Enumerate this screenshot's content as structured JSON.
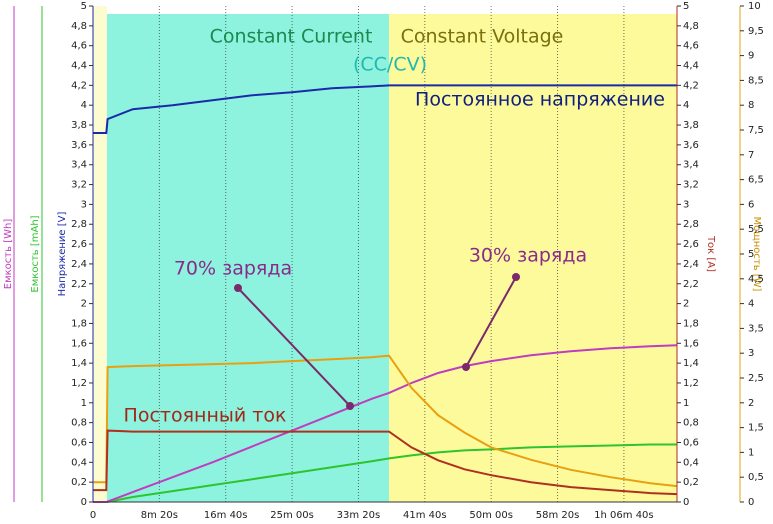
{
  "chart_data": {
    "type": "line",
    "ylabel": "Напряжение [V]",
    "y2label": "Ток [A]",
    "y3label": "Мощность [W]",
    "extra_axis_labels": [
      {
        "text": "Емкость [Wh]",
        "color": "#c03cc0"
      },
      {
        "text": "Емкость [mAh]",
        "color": "#2ec42e"
      }
    ],
    "x": [
      0,
      100,
      110,
      300,
      600,
      900,
      1200,
      1500,
      1800,
      2100,
      2230,
      2400,
      2600,
      2800,
      3000,
      3300,
      3600,
      3900,
      4200,
      4400
    ],
    "xlim": [
      0,
      4400
    ],
    "xticks": [
      0,
      {
        "value": 500,
        "label": "8m 20s"
      },
      {
        "value": 1000,
        "label": "16m 40s"
      },
      {
        "value": 1500,
        "label": "25m 00s"
      },
      {
        "value": 2000,
        "label": "33m 20s"
      },
      {
        "value": 2500,
        "label": "41m 40s"
      },
      {
        "value": 3000,
        "label": "50m 00s"
      },
      {
        "value": 3500,
        "label": "58m 20s"
      },
      {
        "value": 4000,
        "label": "1h 06m 40s"
      }
    ],
    "ylim": [
      0,
      5
    ],
    "yticks": [
      0,
      {
        "value": 0.2,
        "label": "0,2"
      },
      {
        "value": 0.4,
        "label": "0,4"
      },
      {
        "value": 0.6,
        "label": "0,6"
      },
      {
        "value": 0.8,
        "label": "0,8"
      },
      1,
      {
        "value": 1.2,
        "label": "1,2"
      },
      {
        "value": 1.4,
        "label": "1,4"
      },
      {
        "value": 1.6,
        "label": "1,6"
      },
      {
        "value": 1.8,
        "label": "1,8"
      },
      2,
      {
        "value": 2.2,
        "label": "2,2"
      },
      {
        "value": 2.4,
        "label": "2,4"
      },
      {
        "value": 2.6,
        "label": "2,6"
      },
      {
        "value": 2.8,
        "label": "2,8"
      },
      3,
      {
        "value": 3.2,
        "label": "3,2"
      },
      {
        "value": 3.4,
        "label": "3,4"
      },
      {
        "value": 3.6,
        "label": "3,6"
      },
      {
        "value": 3.8,
        "label": "3,8"
      },
      4,
      {
        "value": 4.2,
        "label": "4,2"
      },
      {
        "value": 4.4,
        "label": "4,4"
      },
      {
        "value": 4.6,
        "label": "4,6"
      },
      {
        "value": 4.8,
        "label": "4,8"
      },
      5
    ],
    "y2lim": [
      0,
      5
    ],
    "y2ticks": [
      0,
      {
        "value": 0.2,
        "label": "0,2"
      },
      {
        "value": 0.4,
        "label": "0,4"
      },
      {
        "value": 0.6,
        "label": "0,6"
      },
      {
        "value": 0.8,
        "label": "0,8"
      },
      1,
      {
        "value": 1.2,
        "label": "1,2"
      },
      {
        "value": 1.4,
        "label": "1,4"
      },
      {
        "value": 1.6,
        "label": "1,6"
      },
      {
        "value": 1.8,
        "label": "1,8"
      },
      2,
      {
        "value": 2.2,
        "label": "2,2"
      },
      {
        "value": 2.4,
        "label": "2,4"
      },
      {
        "value": 2.6,
        "label": "2,6"
      },
      {
        "value": 2.8,
        "label": "2,8"
      },
      3,
      {
        "value": 3.2,
        "label": "3,2"
      },
      {
        "value": 3.4,
        "label": "3,4"
      },
      {
        "value": 3.6,
        "label": "3,6"
      },
      {
        "value": 3.8,
        "label": "3,8"
      },
      4,
      {
        "value": 4.2,
        "label": "4,2"
      },
      {
        "value": 4.4,
        "label": "4,4"
      },
      {
        "value": 4.6,
        "label": "4,6"
      },
      {
        "value": 4.8,
        "label": "4,8"
      },
      5
    ],
    "y3lim": [
      0,
      10
    ],
    "y3ticks": [
      0,
      {
        "value": 0.5,
        "label": "0,5"
      },
      1,
      {
        "value": 1.5,
        "label": "1,5"
      },
      2,
      {
        "value": 2.5,
        "label": "2,5"
      },
      3,
      {
        "value": 3.5,
        "label": "3,5"
      },
      4,
      {
        "value": 4.5,
        "label": "4,5"
      },
      5,
      {
        "value": 5.5,
        "label": "5,5"
      },
      6,
      {
        "value": 6.5,
        "label": "6,5"
      },
      7,
      {
        "value": 7.5,
        "label": "7,5"
      },
      8,
      {
        "value": 8.5,
        "label": "8,5"
      },
      9,
      {
        "value": 9.5,
        "label": "9,5"
      },
      10
    ],
    "regions": [
      {
        "from": 0,
        "to": 105,
        "color": "#fdfbd0"
      },
      {
        "from": 105,
        "to": 2230,
        "color": "#8ef3de"
      },
      {
        "from": 2230,
        "to": 4400,
        "color": "#fdfa9c"
      }
    ],
    "series": [
      {
        "color": "#2ec42e",
        "axis": "y",
        "values": [
          0,
          0,
          0,
          0.05,
          0.11,
          0.17,
          0.23,
          0.29,
          0.35,
          0.41,
          0.44,
          0.47,
          0.5,
          0.52,
          0.53,
          0.55,
          0.56,
          0.57,
          0.58,
          0.58
        ]
      },
      {
        "color": "#c03cc0",
        "axis": "y",
        "values": [
          0,
          0,
          0.005,
          0.1,
          0.25,
          0.4,
          0.56,
          0.72,
          0.88,
          1.04,
          1.1,
          1.2,
          1.3,
          1.37,
          1.42,
          1.48,
          1.52,
          1.55,
          1.57,
          1.58
        ]
      },
      {
        "color": "#e8a010",
        "axis": "y3",
        "values": [
          0.4,
          0.4,
          2.72,
          2.74,
          2.76,
          2.78,
          2.8,
          2.84,
          2.88,
          2.92,
          2.95,
          2.3,
          1.75,
          1.4,
          1.1,
          0.85,
          0.65,
          0.5,
          0.38,
          0.32
        ]
      },
      {
        "color": "#b03020",
        "axis": "y2",
        "values": [
          0.12,
          0.12,
          0.72,
          0.71,
          0.71,
          0.71,
          0.71,
          0.71,
          0.71,
          0.71,
          0.71,
          0.55,
          0.42,
          0.33,
          0.27,
          0.2,
          0.15,
          0.12,
          0.09,
          0.08
        ]
      },
      {
        "color": "#1a2aa8",
        "axis": "y",
        "values": [
          3.72,
          3.72,
          3.86,
          3.96,
          4.0,
          4.05,
          4.1,
          4.13,
          4.17,
          4.19,
          4.2,
          4.2,
          4.2,
          4.2,
          4.2,
          4.2,
          4.2,
          4.2,
          4.2,
          4.2
        ]
      }
    ],
    "annotations": [
      "Constant Current",
      "Constant Voltage",
      "(CC/CV)",
      "Постоянное напряжение",
      "70% заряда",
      "30% заряда",
      "Постоянный ток"
    ]
  }
}
